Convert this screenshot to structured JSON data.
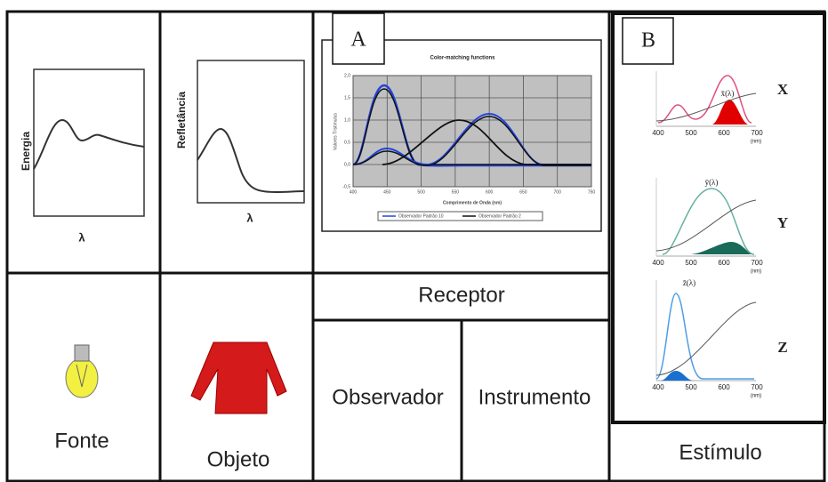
{
  "panels": {
    "fonte": {
      "spectrum_y_label": "Energia",
      "spectrum_x_label": "λ",
      "label": "Fonte"
    },
    "objeto": {
      "spectrum_y_label": "Refletância",
      "spectrum_x_label": "λ",
      "label": "Objeto"
    },
    "receptor": {
      "label": "Receptor",
      "observer": "Observador",
      "instrument": "Instrumento"
    },
    "estimulo": {
      "label": "Estímulo"
    }
  },
  "figure_a": {
    "tag": "A",
    "title": "Color-matching functions",
    "y_label": "Valores Tristimulus",
    "x_label": "Comprimento de Onda (nm)",
    "x_ticks": [
      "400",
      "450",
      "500",
      "550",
      "600",
      "650",
      "700",
      "750"
    ],
    "y_ticks": [
      "2,0",
      "1,5",
      "1,0",
      "0,5",
      "0,0",
      "-0,5"
    ],
    "legend": [
      "Observador Padrão 10",
      "Observador Padrão 2"
    ]
  },
  "figure_b": {
    "tag": "B",
    "unit": "(nm)",
    "x_ticks": [
      "400",
      "500",
      "600",
      "700"
    ],
    "rows": [
      {
        "function": "x̄(λ)",
        "label": "X"
      },
      {
        "function": "ȳ(λ)",
        "label": "Y"
      },
      {
        "function": "z̄(λ)",
        "label": "Z"
      }
    ]
  }
}
